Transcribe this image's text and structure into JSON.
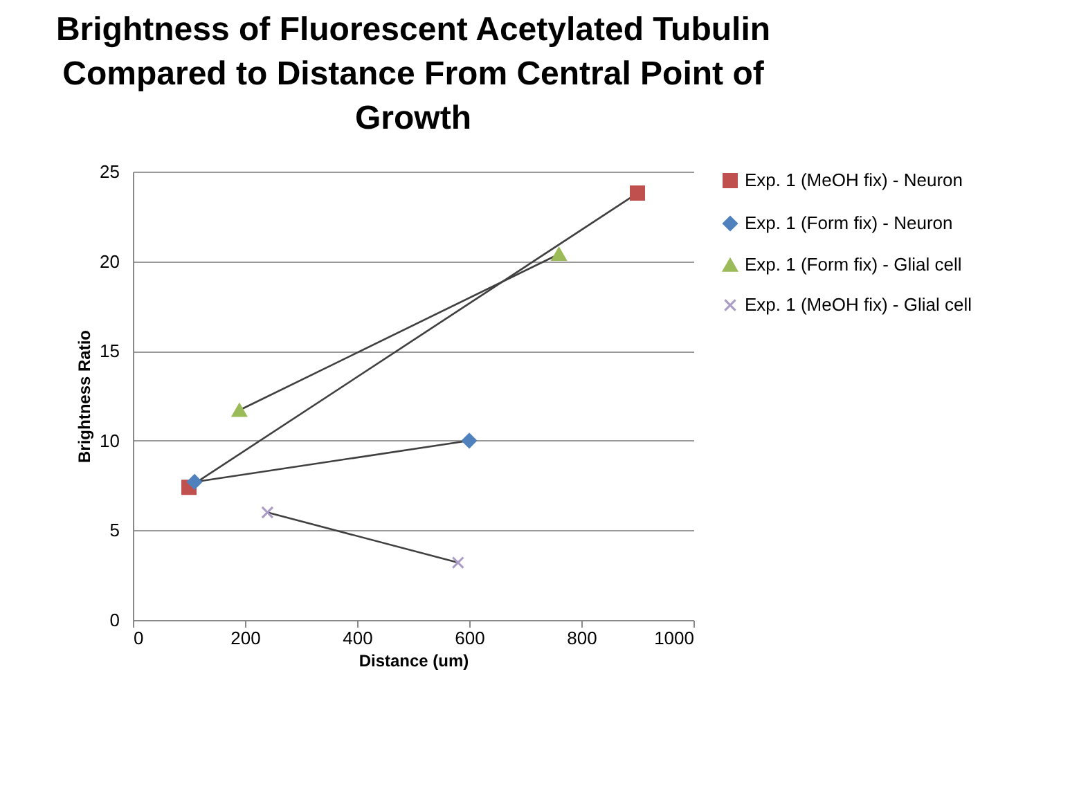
{
  "chart_data": {
    "type": "line",
    "title": "Brightness of Fluorescent Acetylated Tubulin Compared to Distance From Central Point of Growth",
    "xlabel": "Distance (um)",
    "ylabel": "Brightness Ratio",
    "series": [
      {
        "name": "Exp. 1 (MeOH fix) - Neuron",
        "color": "#c0504d",
        "marker": "square",
        "x": [
          100,
          900
        ],
        "values": [
          7.4,
          23.8
        ]
      },
      {
        "name": "Exp. 1 (Form fix) - Neuron",
        "color": "#4f81bd",
        "marker": "diamond",
        "x": [
          110,
          600
        ],
        "values": [
          7.7,
          10.0
        ]
      },
      {
        "name": "Exp. 1 (Form fix) - Glial cell",
        "color": "#9bbb59",
        "marker": "triangle",
        "x": [
          190,
          760
        ],
        "values": [
          11.7,
          20.4
        ]
      },
      {
        "name": "Exp. 1 (MeOH fix) - Glial cell",
        "color": "#a99bc6",
        "marker": "cross",
        "x": [
          240,
          580
        ],
        "values": [
          6.0,
          3.2
        ]
      }
    ],
    "xlim": [
      0,
      1000
    ],
    "xticks": [
      0,
      200,
      400,
      600,
      800,
      1000
    ],
    "ylim": [
      0,
      25
    ],
    "yticks": [
      0,
      5,
      10,
      15,
      20,
      25
    ],
    "grid": "y",
    "legend": "right",
    "line_style": "solid"
  }
}
